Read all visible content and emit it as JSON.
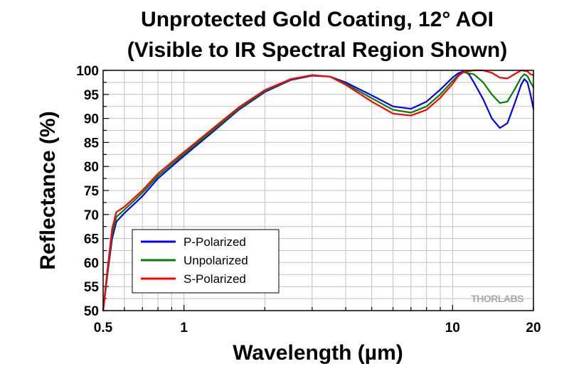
{
  "chart_data": {
    "type": "line",
    "title_line1": "Unprotected Gold Coating, 12° AOI",
    "title_line2": "(Visible to IR Spectral Region Shown)",
    "xlabel": "Wavelength (µm)",
    "ylabel": "Reflectance (%)",
    "xscale": "log",
    "xlim": [
      0.5,
      20
    ],
    "ylim": [
      50,
      100
    ],
    "x_tick_labels": [
      {
        "value": 0.5,
        "label": "0.5"
      },
      {
        "value": 1,
        "label": "1"
      },
      {
        "value": 10,
        "label": "10"
      },
      {
        "value": 20,
        "label": "20"
      }
    ],
    "y_ticks": [
      50,
      55,
      60,
      65,
      70,
      75,
      80,
      85,
      90,
      95,
      100
    ],
    "grid": true,
    "legend_position": "bottom-left",
    "watermark": "THORLABS",
    "series": [
      {
        "name": "P-Polarized",
        "color": "#0000ff",
        "points": [
          [
            0.5,
            50
          ],
          [
            0.52,
            58
          ],
          [
            0.54,
            65
          ],
          [
            0.56,
            68.5
          ],
          [
            0.6,
            70.3
          ],
          [
            0.7,
            73.8
          ],
          [
            0.8,
            77.5
          ],
          [
            1,
            82.2
          ],
          [
            1.3,
            87.5
          ],
          [
            1.6,
            91.8
          ],
          [
            2,
            95.5
          ],
          [
            2.5,
            98
          ],
          [
            3,
            98.9
          ],
          [
            3.5,
            98.7
          ],
          [
            4,
            97.5
          ],
          [
            5,
            94.8
          ],
          [
            6,
            92.5
          ],
          [
            7,
            92
          ],
          [
            8,
            93.5
          ],
          [
            9,
            96
          ],
          [
            10,
            98.5
          ],
          [
            10.5,
            99.4
          ],
          [
            11,
            99.8
          ],
          [
            11.5,
            99.2
          ],
          [
            12,
            97.5
          ],
          [
            13,
            94
          ],
          [
            14,
            90
          ],
          [
            15,
            88
          ],
          [
            16,
            89
          ],
          [
            17,
            93
          ],
          [
            18,
            97
          ],
          [
            18.5,
            98.2
          ],
          [
            19,
            97.5
          ],
          [
            19.5,
            95
          ],
          [
            20,
            92
          ]
        ]
      },
      {
        "name": "Unpolarized",
        "color": "#008000",
        "points": [
          [
            0.5,
            50
          ],
          [
            0.52,
            58.5
          ],
          [
            0.54,
            66
          ],
          [
            0.56,
            69.5
          ],
          [
            0.6,
            71
          ],
          [
            0.7,
            74.5
          ],
          [
            0.8,
            78
          ],
          [
            1,
            82.6
          ],
          [
            1.3,
            87.8
          ],
          [
            1.6,
            92
          ],
          [
            2,
            95.7
          ],
          [
            2.5,
            98.1
          ],
          [
            3,
            99
          ],
          [
            3.5,
            98.7
          ],
          [
            4,
            97.2
          ],
          [
            5,
            94.2
          ],
          [
            6,
            91.8
          ],
          [
            7,
            91.2
          ],
          [
            8,
            92.5
          ],
          [
            9,
            95
          ],
          [
            10,
            97.8
          ],
          [
            10.5,
            99
          ],
          [
            11,
            99.6
          ],
          [
            12,
            99.2
          ],
          [
            13,
            97.5
          ],
          [
            14,
            95
          ],
          [
            15,
            93.2
          ],
          [
            16,
            93.5
          ],
          [
            17,
            96
          ],
          [
            18,
            98.5
          ],
          [
            18.5,
            99.2
          ],
          [
            19,
            98.8
          ],
          [
            19.5,
            97.5
          ],
          [
            20,
            96.5
          ]
        ]
      },
      {
        "name": "S-Polarized",
        "color": "#ff0000",
        "points": [
          [
            0.5,
            50
          ],
          [
            0.52,
            59
          ],
          [
            0.54,
            67
          ],
          [
            0.56,
            70.5
          ],
          [
            0.6,
            71.6
          ],
          [
            0.7,
            75
          ],
          [
            0.8,
            78.5
          ],
          [
            1,
            83
          ],
          [
            1.3,
            88.2
          ],
          [
            1.6,
            92.3
          ],
          [
            2,
            95.9
          ],
          [
            2.5,
            98.2
          ],
          [
            3,
            99
          ],
          [
            3.5,
            98.7
          ],
          [
            4,
            97
          ],
          [
            5,
            93.5
          ],
          [
            6,
            91
          ],
          [
            7,
            90.6
          ],
          [
            8,
            91.8
          ],
          [
            9,
            94.3
          ],
          [
            10,
            97.2
          ],
          [
            10.5,
            98.8
          ],
          [
            11,
            99.7
          ],
          [
            12,
            100
          ],
          [
            13,
            100
          ],
          [
            14,
            99.5
          ],
          [
            15,
            98.5
          ],
          [
            16,
            98.3
          ],
          [
            17,
            99.2
          ],
          [
            18,
            100
          ],
          [
            19,
            99.8
          ],
          [
            19.5,
            99.2
          ],
          [
            20,
            99
          ]
        ]
      }
    ]
  }
}
